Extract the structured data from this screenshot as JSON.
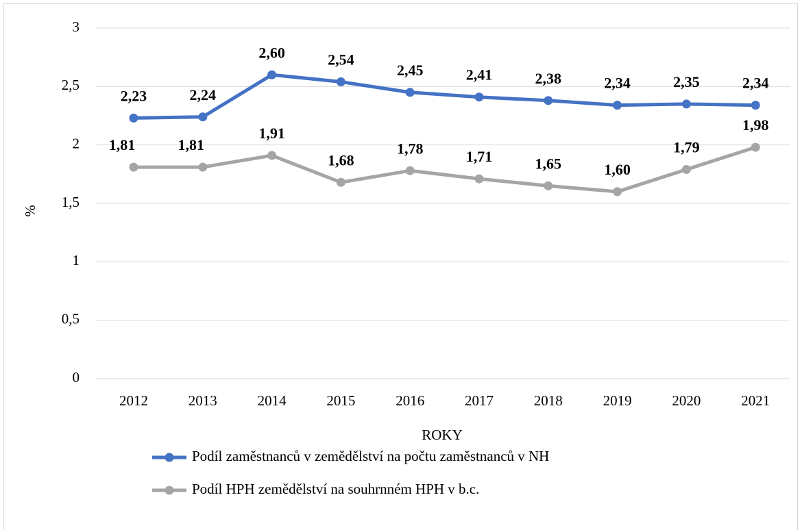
{
  "chart_data": {
    "type": "line",
    "x_label": "ROKY",
    "y_label": "%",
    "categories": [
      "2012",
      "2013",
      "2014",
      "2015",
      "2016",
      "2017",
      "2018",
      "2019",
      "2020",
      "2021"
    ],
    "series": [
      {
        "name": "Podíl zaměstnanců v zemědělství na počtu zaměstnanců v NH",
        "color": "#4472c4",
        "values": [
          2.23,
          2.24,
          2.6,
          2.54,
          2.45,
          2.41,
          2.38,
          2.34,
          2.35,
          2.34
        ],
        "value_labels": [
          "2,23",
          "2,24",
          "2,60",
          "2,54",
          "2,45",
          "2,41",
          "2,38",
          "2,34",
          "2,35",
          "2,34"
        ]
      },
      {
        "name": "Podíl HPH zemědělství na souhrnném HPH v b.c.",
        "color": "#a5a5a5",
        "values": [
          1.81,
          1.81,
          1.91,
          1.68,
          1.78,
          1.71,
          1.65,
          1.6,
          1.79,
          1.98
        ],
        "value_labels": [
          "1,81",
          "1,81",
          "1,91",
          "1,68",
          "1,78",
          "1,71",
          "1,65",
          "1,60",
          "1,79",
          "1,98"
        ]
      }
    ],
    "ylim": [
      0,
      3
    ],
    "yticks": [
      0,
      {
        "value": 0.5,
        "label": "0,5"
      },
      1,
      {
        "value": 1.5,
        "label": "1,5"
      },
      2,
      {
        "value": 2.5,
        "label": "2,5"
      },
      3
    ],
    "grid": true,
    "legend": "bottom"
  }
}
